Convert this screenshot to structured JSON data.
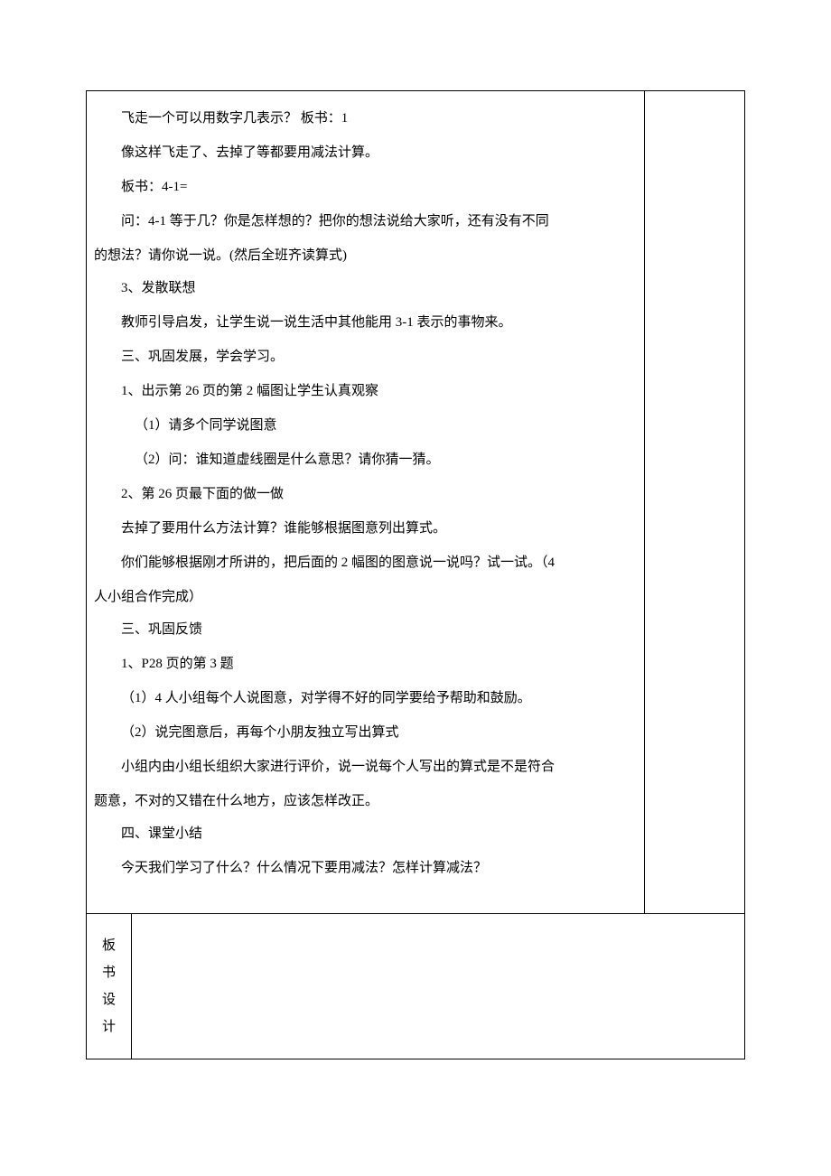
{
  "content": {
    "lines": [
      {
        "cls": "para",
        "text": "飞走一个可以用数字几表示？ 板书：1"
      },
      {
        "cls": "para",
        "text": "像这样飞走了、去掉了等都要用减法计算。"
      },
      {
        "cls": "para",
        "text": "板书：4-1="
      },
      {
        "cls": "para",
        "text": "问：4-1 等于几？你是怎样想的？把你的想法说给大家听，还有没有不同"
      },
      {
        "cls": "",
        "text": "的想法？请你说一说。(然后全班齐读算式)"
      },
      {
        "cls": "para",
        "text": "3、发散联想"
      },
      {
        "cls": "para",
        "text": "教师引导启发，让学生说一说生活中其他能用 3-1 表示的事物来。"
      },
      {
        "cls": "para",
        "text": "三、巩固发展，学会学习。"
      },
      {
        "cls": "para",
        "text": "1、出示第 26 页的第 2 幅图让学生认真观察"
      },
      {
        "cls": "para-sub",
        "text": "（1）请多个同学说图意"
      },
      {
        "cls": "para-sub",
        "text": "（2）问：谁知道虚线圈是什么意思？请你猜一猜。"
      },
      {
        "cls": "para",
        "text": "2、第 26 页最下面的做一做"
      },
      {
        "cls": "para",
        "text": "去掉了要用什么方法计算？谁能够根据图意列出算式。"
      },
      {
        "cls": "para",
        "text": "你们能够根据刚才所讲的，把后面的 2 幅图的图意说一说吗？试一试。（4"
      },
      {
        "cls": "",
        "text": "人小组合作完成）"
      },
      {
        "cls": "para",
        "text": "三、巩固反馈"
      },
      {
        "cls": "para",
        "text": "1、P28 页的第 3 题"
      },
      {
        "cls": "para",
        "text": "（1）4 人小组每个人说图意，对学得不好的同学要给予帮助和鼓励。"
      },
      {
        "cls": "para",
        "text": "（2）说完图意后，再每个小朋友独立写出算式"
      },
      {
        "cls": "para",
        "text": "小组内由小组长组织大家进行评价，说一说每个人写出的算式是不是符合"
      },
      {
        "cls": "",
        "text": "题意，不对的又错在什么地方，应该怎样改正。"
      },
      {
        "cls": "para",
        "text": "四、课堂小结"
      },
      {
        "cls": "para",
        "text": "今天我们学习了什么？什么情况下要用减法？怎样计算减法？"
      }
    ]
  },
  "labelChars": [
    "板",
    "书",
    "设",
    "计"
  ]
}
